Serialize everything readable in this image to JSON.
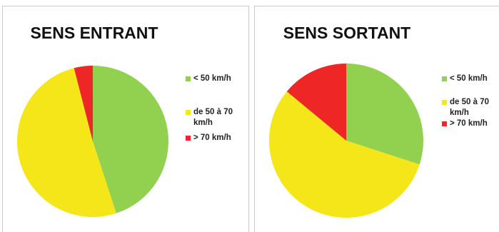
{
  "chart_data": [
    {
      "type": "pie",
      "title": "SENS ENTRANT",
      "categories": [
        "< 50 km/h",
        "de 50 à 70 km/h",
        "> 70 km/h"
      ],
      "values": [
        45,
        51,
        4
      ],
      "colors": [
        "#92d050",
        "#f5e619",
        "#ef2626"
      ],
      "legend_position": "right"
    },
    {
      "type": "pie",
      "title": "SENS SORTANT",
      "categories": [
        "< 50 km/h",
        "de 50 à 70 km/h",
        "> 70 km/h"
      ],
      "values": [
        30,
        56,
        14
      ],
      "colors": [
        "#92d050",
        "#f5e619",
        "#ef2626"
      ],
      "legend_position": "right"
    }
  ]
}
